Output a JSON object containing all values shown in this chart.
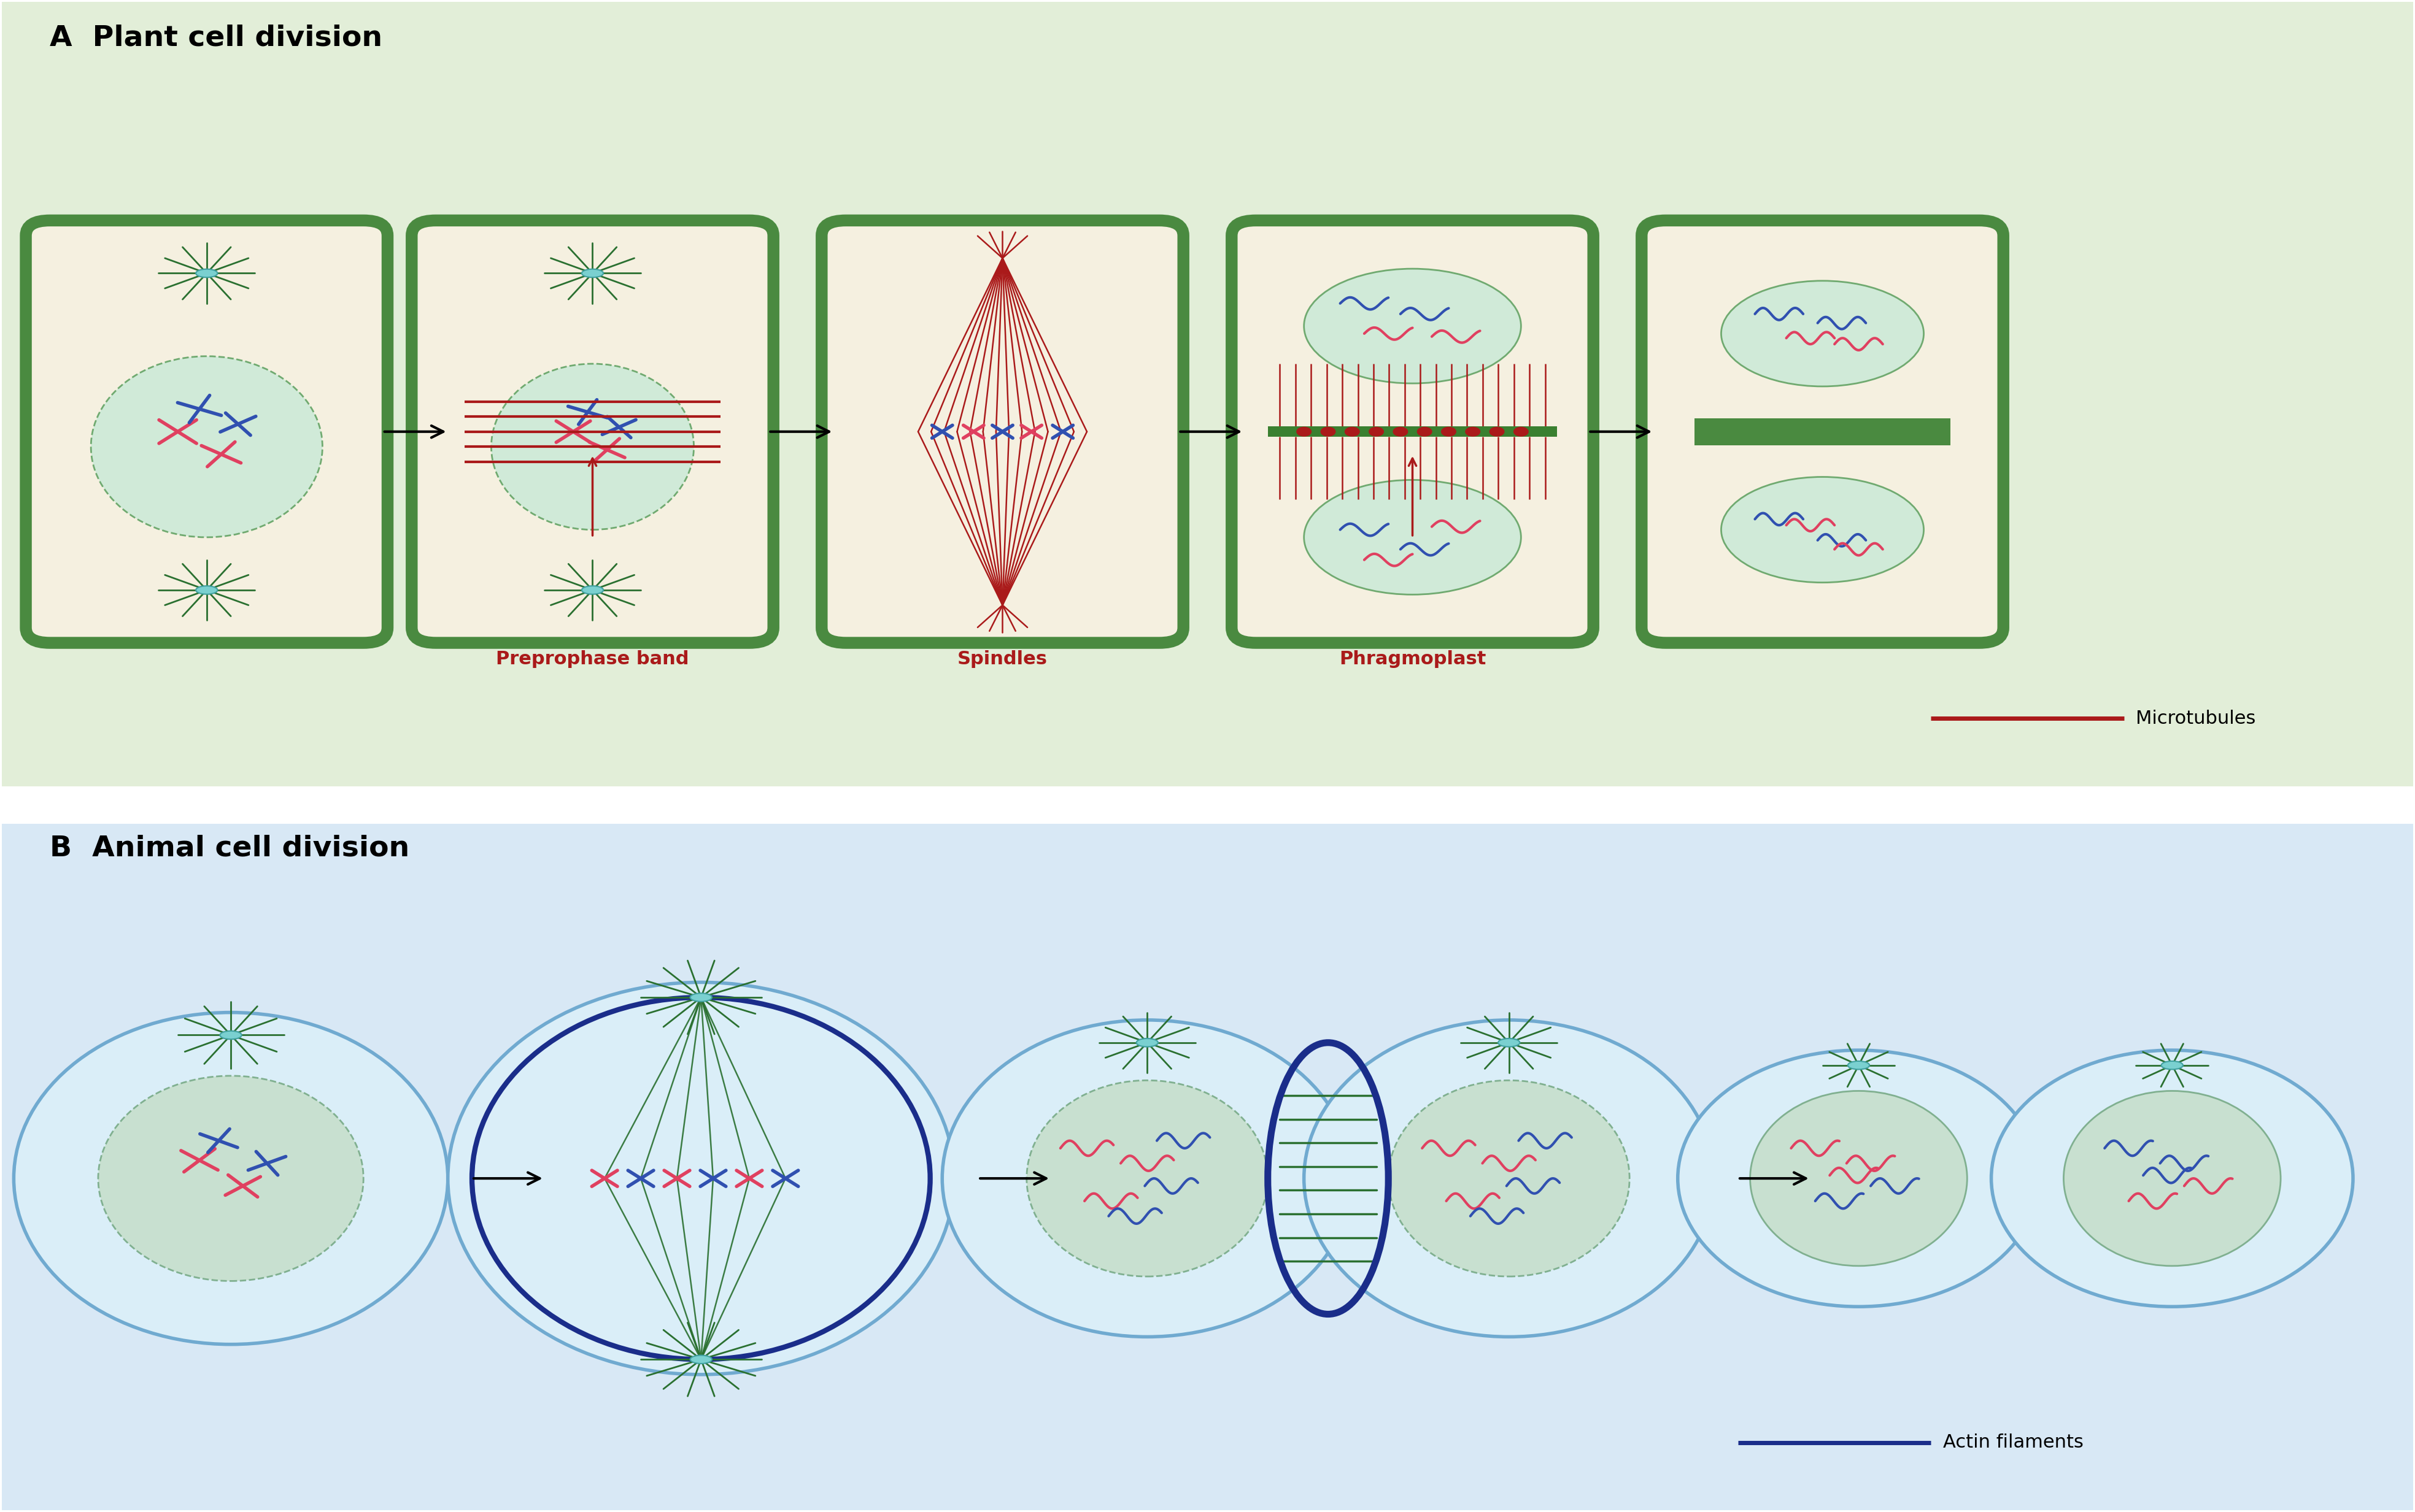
{
  "fig_width": 39.35,
  "fig_height": 24.65,
  "panel_A_bg": "#e2eed8",
  "panel_B_bg": "#d8e8f5",
  "cell_bg": "#f5f0e0",
  "plant_cell_border": "#4a8a40",
  "plant_cell_border_outer": "#3a7030",
  "nucleus_color": "#d0ead8",
  "nucleus_border": "#70aa70",
  "chromosome_pink": "#e04060",
  "chromosome_blue": "#3050b0",
  "microtubule_color": "#aa1a1a",
  "actin_color": "#1a2d8a",
  "organelle_green": "#2a7030",
  "centrosome_teal": "#40a0a0",
  "centrosome_fill": "#7ad0d0",
  "animal_cell_fill": "#daeef8",
  "animal_cell_border": "#70aad0",
  "animal_nucleus_fill": "#c8e0d0",
  "animal_nucleus_border": "#80b090",
  "phragmoplast_green": "#3a8030",
  "white": "#ffffff",
  "title_A": "A  Plant cell division",
  "title_B": "B  Animal cell division",
  "label_preprophase": "Preprophase band",
  "label_spindles": "Spindles",
  "label_phragmoplast": "Phragmoplast",
  "label_microtubules": "Microtubules",
  "label_actin": "Actin filaments"
}
